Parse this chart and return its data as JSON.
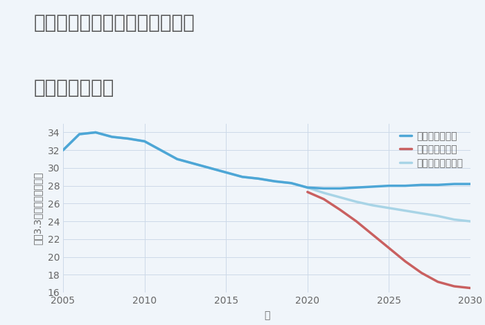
{
  "title_line1": "兵庫県姫路市広畑区東夢前台の",
  "title_line2": "土地の価格推移",
  "xlabel": "年",
  "ylabel": "坪（3.3m）単価（万円）",
  "background_color": "#f0f5fa",
  "plot_bg_color": "#f0f5fa",
  "grid_color": "#ccd9e8",
  "ylim": [
    16,
    35
  ],
  "xlim": [
    2005,
    2030
  ],
  "yticks": [
    16,
    18,
    20,
    22,
    24,
    26,
    28,
    30,
    32,
    34
  ],
  "xticks": [
    2005,
    2010,
    2015,
    2020,
    2025,
    2030
  ],
  "good_scenario": {
    "label": "グッドシナリオ",
    "color": "#4da6d6",
    "linewidth": 2.5,
    "x": [
      2005,
      2006,
      2007,
      2008,
      2009,
      2010,
      2011,
      2012,
      2013,
      2014,
      2015,
      2016,
      2017,
      2018,
      2019,
      2020,
      2021,
      2022,
      2023,
      2024,
      2025,
      2026,
      2027,
      2028,
      2029,
      2030
    ],
    "y": [
      32.0,
      33.8,
      34.0,
      33.5,
      33.3,
      33.0,
      32.0,
      31.0,
      30.5,
      30.0,
      29.5,
      29.0,
      28.8,
      28.5,
      28.3,
      27.8,
      27.7,
      27.7,
      27.8,
      27.9,
      28.0,
      28.0,
      28.1,
      28.1,
      28.2,
      28.2
    ]
  },
  "bad_scenario": {
    "label": "バッドシナリオ",
    "color": "#c96060",
    "linewidth": 2.5,
    "x": [
      2020,
      2021,
      2022,
      2023,
      2024,
      2025,
      2026,
      2027,
      2028,
      2029,
      2030
    ],
    "y": [
      27.3,
      26.5,
      25.3,
      24.0,
      22.5,
      21.0,
      19.5,
      18.2,
      17.2,
      16.7,
      16.5
    ]
  },
  "normal_scenario": {
    "label": "ノーマルシナリオ",
    "color": "#a8d4e6",
    "linewidth": 2.5,
    "x": [
      2005,
      2006,
      2007,
      2008,
      2009,
      2010,
      2011,
      2012,
      2013,
      2014,
      2015,
      2016,
      2017,
      2018,
      2019,
      2020,
      2021,
      2022,
      2023,
      2024,
      2025,
      2026,
      2027,
      2028,
      2029,
      2030
    ],
    "y": [
      32.0,
      33.8,
      34.0,
      33.5,
      33.3,
      33.0,
      32.0,
      31.0,
      30.5,
      30.0,
      29.5,
      29.0,
      28.8,
      28.5,
      28.3,
      27.8,
      27.2,
      26.7,
      26.2,
      25.8,
      25.5,
      25.2,
      24.9,
      24.6,
      24.2,
      24.0
    ]
  },
  "title_color": "#555555",
  "title_fontsize": 20,
  "axis_label_fontsize": 10,
  "tick_fontsize": 10,
  "legend_fontsize": 10
}
